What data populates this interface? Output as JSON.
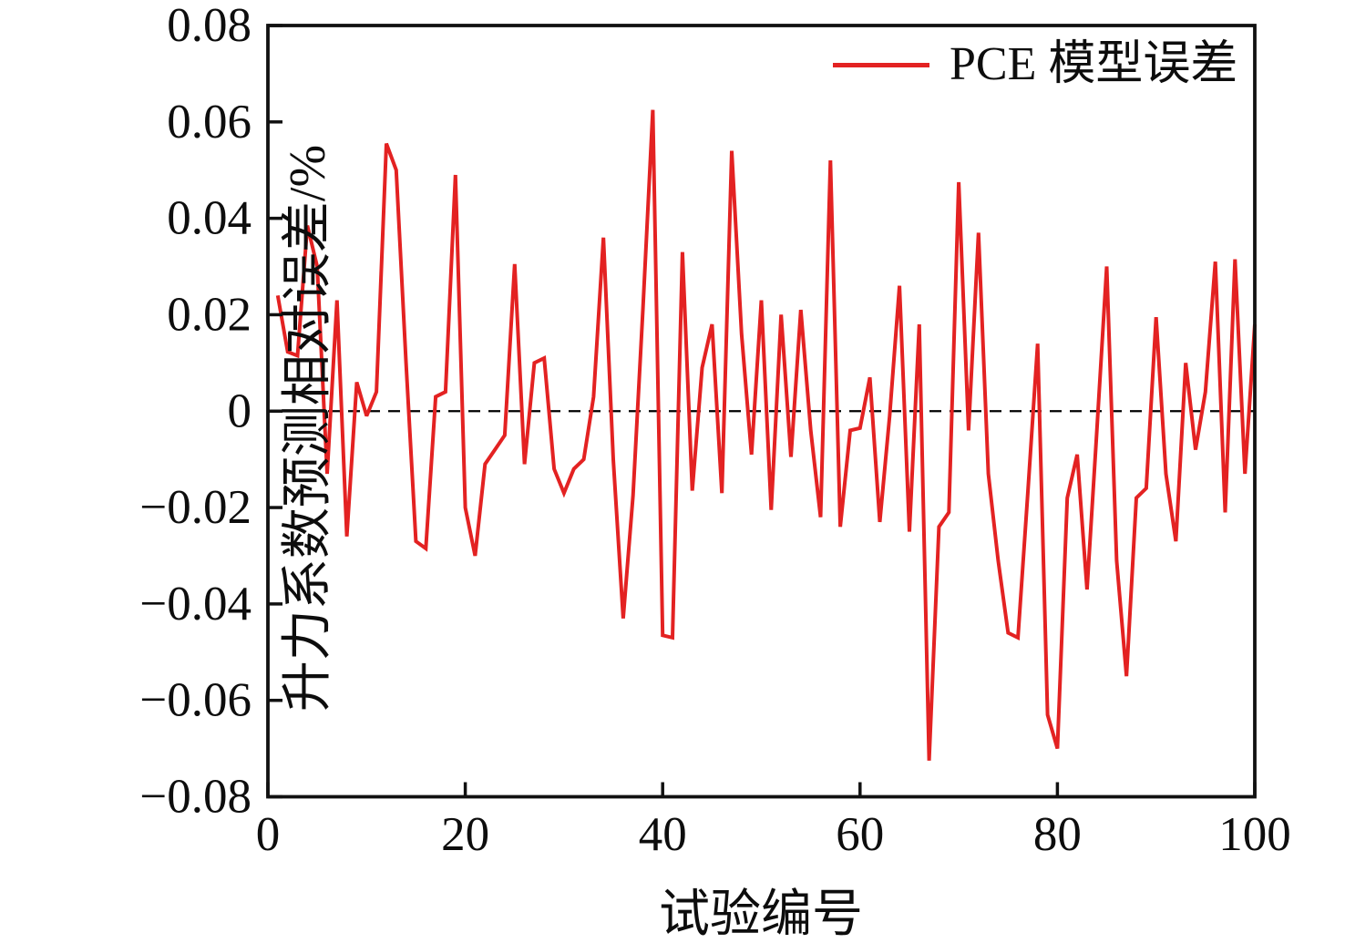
{
  "colors": {
    "series_red": "#e32222",
    "axis": "#111111",
    "text": "#0d0d0d",
    "zero_line": "#000000"
  },
  "legend": {
    "label": "PCE 模型误差"
  },
  "axes": {
    "x": {
      "label": "试验编号",
      "tick_values": [
        0,
        20,
        40,
        60,
        80,
        100
      ],
      "tick_labels": [
        "0",
        "20",
        "40",
        "60",
        "80",
        "100"
      ]
    },
    "y": {
      "label": "升力系数预测相对误差/%",
      "tick_values": [
        0.08,
        0.06,
        0.04,
        0.02,
        0,
        -0.02,
        -0.04,
        -0.06,
        -0.08
      ],
      "tick_labels": [
        "0.08",
        "0.06",
        "0.04",
        "0.02",
        "0",
        "−0.02",
        "−0.04",
        "−0.06",
        "−0.08"
      ]
    }
  },
  "chart_data": {
    "type": "line",
    "title": "",
    "xlabel": "试验编号",
    "ylabel": "升力系数预测相对误差/%",
    "legend_position": "upper right",
    "grid": false,
    "zero_reference_line": true,
    "xlim": [
      0,
      100
    ],
    "ylim": [
      -0.08,
      0.08
    ],
    "series": [
      {
        "name": "PCE 模型误差",
        "color": "#e32222",
        "x_start": 1,
        "x_step": 1,
        "values": [
          0.024,
          0.0123,
          0.0115,
          0.0385,
          0.03,
          -0.013,
          0.023,
          -0.026,
          0.006,
          -0.001,
          0.004,
          0.0555,
          0.05,
          0.01,
          -0.027,
          -0.0285,
          0.003,
          0.004,
          0.049,
          -0.02,
          -0.03,
          -0.011,
          -0.008,
          -0.005,
          0.0305,
          -0.011,
          0.01,
          0.011,
          -0.012,
          -0.017,
          -0.012,
          -0.01,
          0.003,
          0.036,
          -0.01,
          -0.043,
          -0.0175,
          0.021,
          0.0625,
          -0.0465,
          -0.047,
          0.033,
          -0.0165,
          0.009,
          0.018,
          -0.017,
          0.054,
          0.016,
          -0.009,
          0.023,
          -0.0205,
          0.02,
          -0.0095,
          0.021,
          -0.004,
          -0.022,
          0.052,
          -0.024,
          -0.004,
          -0.0035,
          0.007,
          -0.023,
          -0.001,
          0.026,
          -0.025,
          0.018,
          -0.0725,
          -0.024,
          -0.021,
          0.0475,
          -0.004,
          0.037,
          -0.013,
          -0.031,
          -0.046,
          -0.047,
          -0.017,
          0.014,
          -0.063,
          -0.07,
          -0.018,
          -0.009,
          -0.037,
          -0.004,
          0.03,
          -0.031,
          -0.055,
          -0.018,
          -0.016,
          0.0195,
          -0.013,
          -0.027,
          0.01,
          -0.008,
          0.004,
          0.031,
          -0.021,
          0.0315,
          -0.013,
          0.018
        ]
      }
    ]
  }
}
